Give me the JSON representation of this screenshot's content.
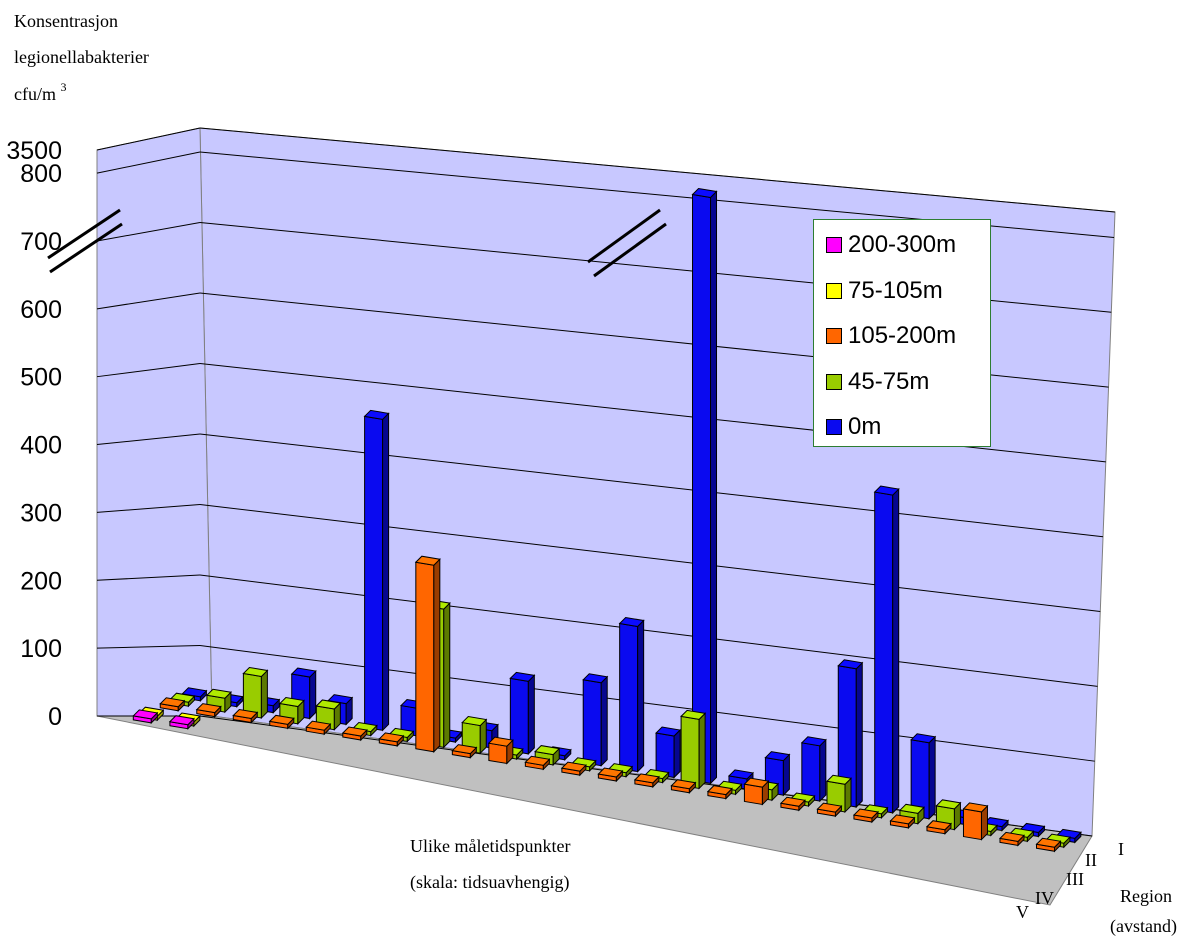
{
  "chart_data": {
    "type": "bar",
    "subtype": "3d-clustered-column",
    "ylabel_lines": [
      "Konsentrasjon",
      "legionellabakterier",
      "cfu/m"
    ],
    "ylabel_superscript": "3",
    "xlabel_lines": [
      "Ulike måletidspunkter",
      "(skala: tidsuavhengig)"
    ],
    "zlabel_lines": [
      "Region",
      "(avstand)"
    ],
    "z_categories": [
      "I",
      "II",
      "III",
      "IV",
      "V"
    ],
    "y_ticks": [
      "0",
      "100",
      "200",
      "300",
      "400",
      "500",
      "600",
      "700",
      "800",
      "3500"
    ],
    "axis_break": "between 800 and 3500",
    "ylim": [
      0,
      3500
    ],
    "legend_position": "top-right",
    "grid": true,
    "colors": {
      "wall": "#c8c8ff",
      "floor": "#c0c0c0",
      "0m": "#0a0af0",
      "45-75m": "#99cc00",
      "105-200m": "#ff6600",
      "75-105m": "#ffff00",
      "200-300m": "#ff00ff"
    },
    "series": [
      {
        "name": "200-300m",
        "color": "#ff00ff",
        "points": [
          {
            "t": 1,
            "v": 0
          },
          {
            "t": 2,
            "v": 0
          }
        ]
      },
      {
        "name": "75-105m",
        "color": "#ffff00",
        "points": [
          {
            "t": 1,
            "v": 0
          },
          {
            "t": 2,
            "v": 0
          }
        ]
      },
      {
        "name": "105-200m",
        "color": "#ff6600",
        "points": [
          {
            "t": 1,
            "v": 0
          },
          {
            "t": 2,
            "v": 0
          },
          {
            "t": 3,
            "v": 0
          },
          {
            "t": 4,
            "v": 0
          },
          {
            "t": 5,
            "v": 0
          },
          {
            "t": 6,
            "v": 0
          },
          {
            "t": 7,
            "v": 0
          },
          {
            "t": 8,
            "v": 270
          },
          {
            "t": 9,
            "v": 0
          },
          {
            "t": 10,
            "v": 25
          },
          {
            "t": 11,
            "v": 0
          },
          {
            "t": 12,
            "v": 0
          },
          {
            "t": 13,
            "v": 0
          },
          {
            "t": 14,
            "v": 0
          },
          {
            "t": 15,
            "v": 0
          },
          {
            "t": 16,
            "v": 0
          },
          {
            "t": 17,
            "v": 25
          },
          {
            "t": 18,
            "v": 0
          },
          {
            "t": 19,
            "v": 0
          },
          {
            "t": 20,
            "v": 0
          },
          {
            "t": 21,
            "v": 0
          },
          {
            "t": 22,
            "v": 0
          },
          {
            "t": 23,
            "v": 40
          },
          {
            "t": 24,
            "v": 0
          },
          {
            "t": 25,
            "v": 0
          }
        ]
      },
      {
        "name": "45-75m",
        "color": "#99cc00",
        "points": [
          {
            "t": 1,
            "v": 0
          },
          {
            "t": 2,
            "v": 20
          },
          {
            "t": 3,
            "v": 60
          },
          {
            "t": 4,
            "v": 25
          },
          {
            "t": 5,
            "v": 30
          },
          {
            "t": 6,
            "v": 0
          },
          {
            "t": 7,
            "v": 0
          },
          {
            "t": 8,
            "v": 200
          },
          {
            "t": 9,
            "v": 40
          },
          {
            "t": 10,
            "v": 0
          },
          {
            "t": 11,
            "v": 15
          },
          {
            "t": 12,
            "v": 0
          },
          {
            "t": 13,
            "v": 0
          },
          {
            "t": 14,
            "v": 0
          },
          {
            "t": 15,
            "v": 100
          },
          {
            "t": 16,
            "v": 0
          },
          {
            "t": 17,
            "v": 15
          },
          {
            "t": 18,
            "v": 0
          },
          {
            "t": 19,
            "v": 40
          },
          {
            "t": 20,
            "v": 0
          },
          {
            "t": 21,
            "v": 15
          },
          {
            "t": 22,
            "v": 30
          },
          {
            "t": 23,
            "v": 0
          },
          {
            "t": 24,
            "v": 0
          },
          {
            "t": 25,
            "v": 0
          }
        ]
      },
      {
        "name": "0m",
        "color": "#0a0af0",
        "points": [
          {
            "t": 1,
            "v": 0
          },
          {
            "t": 2,
            "v": 0
          },
          {
            "t": 3,
            "v": 10
          },
          {
            "t": 4,
            "v": 60
          },
          {
            "t": 5,
            "v": 30
          },
          {
            "t": 6,
            "v": 450
          },
          {
            "t": 7,
            "v": 40
          },
          {
            "t": 8,
            "v": 0
          },
          {
            "t": 9,
            "v": 25
          },
          {
            "t": 10,
            "v": 105
          },
          {
            "t": 11,
            "v": 5
          },
          {
            "t": 12,
            "v": 120
          },
          {
            "t": 13,
            "v": 210
          },
          {
            "t": 14,
            "v": 60
          },
          {
            "t": 15,
            "v": 3500
          },
          {
            "t": 16,
            "v": 15
          },
          {
            "t": 17,
            "v": 50
          },
          {
            "t": 18,
            "v": 80
          },
          {
            "t": 19,
            "v": 200
          },
          {
            "t": 20,
            "v": 460
          },
          {
            "t": 21,
            "v": 110
          },
          {
            "t": 22,
            "v": 10
          },
          {
            "t": 23,
            "v": 0
          },
          {
            "t": 24,
            "v": 0
          },
          {
            "t": 25,
            "v": 0
          }
        ]
      }
    ]
  }
}
